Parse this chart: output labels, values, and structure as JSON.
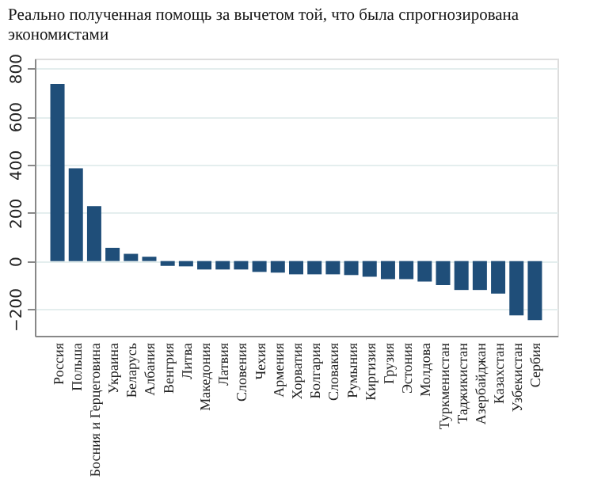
{
  "chart_data": {
    "type": "bar",
    "title": "Реально полученная помощь за вычетом той, что была спрогнозирована экономистами",
    "categories": [
      "Россия",
      "Польша",
      "Босния и Герцеговина",
      "Украина",
      "Беларусь",
      "Албания",
      "Венгрия",
      "Литва",
      "Македония",
      "Латвия",
      "Словения",
      "Чехия",
      "Армения",
      "Хорватия",
      "Болгария",
      "Словакия",
      "Румыния",
      "Киргизия",
      "Грузия",
      "Эстония",
      "Молдова",
      "Туркменистан",
      "Таджикистан",
      "Азербайджан",
      "Казахстан",
      "Узбекистан",
      "Сербия"
    ],
    "values": [
      735,
      385,
      228,
      55,
      30,
      18,
      -20,
      -22,
      -35,
      -35,
      -35,
      -45,
      -48,
      -55,
      -55,
      -55,
      -58,
      -65,
      -75,
      -75,
      -85,
      -100,
      -120,
      -120,
      -135,
      -225,
      -245
    ],
    "color": "#1f4e79",
    "ylim": [
      -310,
      840
    ],
    "yticks": [
      -200,
      0,
      200,
      400,
      600,
      800
    ],
    "grid": "y"
  }
}
